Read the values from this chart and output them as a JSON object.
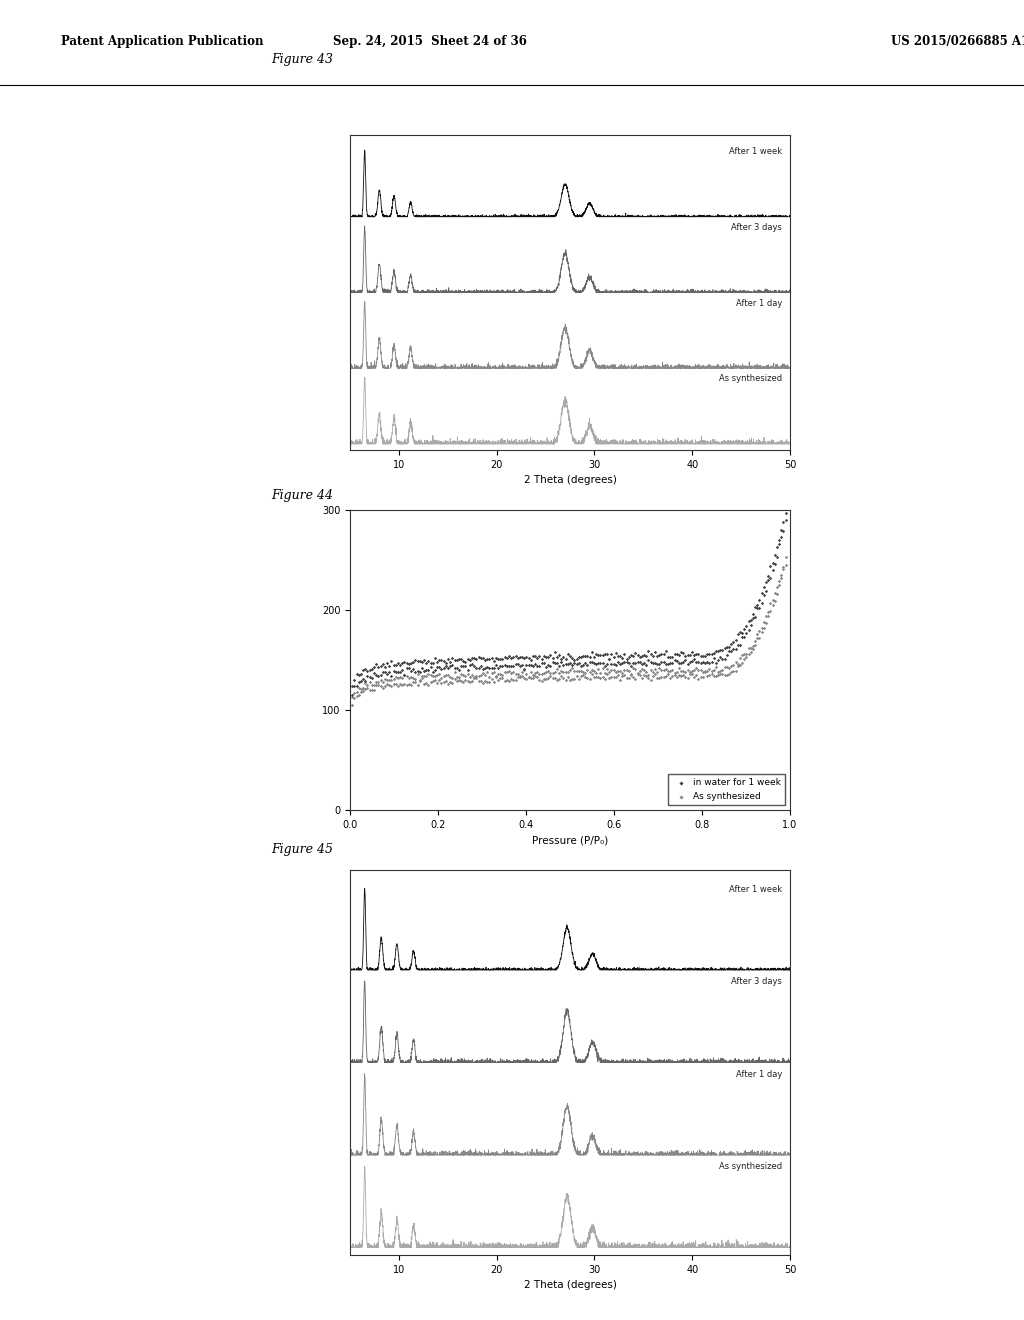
{
  "header_left": "Patent Application Publication",
  "header_mid": "Sep. 24, 2015  Sheet 24 of 36",
  "header_right": "US 2015/0266885 A1",
  "fig43_label": "Figure 43",
  "fig44_label": "Figure 44",
  "fig45_label": "Figure 45",
  "xrd_xlabel": "2 Theta (degrees)",
  "xrd_xlim": [
    5,
    50
  ],
  "xrd_xticks": [
    10,
    20,
    30,
    40,
    50
  ],
  "xrd_labels_top_to_bot": [
    "After 1 week",
    "After 3 days",
    "After 1 day",
    "As synthesized"
  ],
  "isotherm_xlabel": "Pressure (P/P₀)",
  "isotherm_xlim": [
    0.0,
    1.0
  ],
  "isotherm_ylim": [
    0,
    300
  ],
  "isotherm_yticks": [
    0,
    100,
    200,
    300
  ],
  "isotherm_xticks": [
    0.0,
    0.2,
    0.4,
    0.6,
    0.8,
    1.0
  ],
  "isotherm_legend": [
    "in water for 1 week",
    "As synthesized"
  ],
  "bg_color": "#ffffff"
}
